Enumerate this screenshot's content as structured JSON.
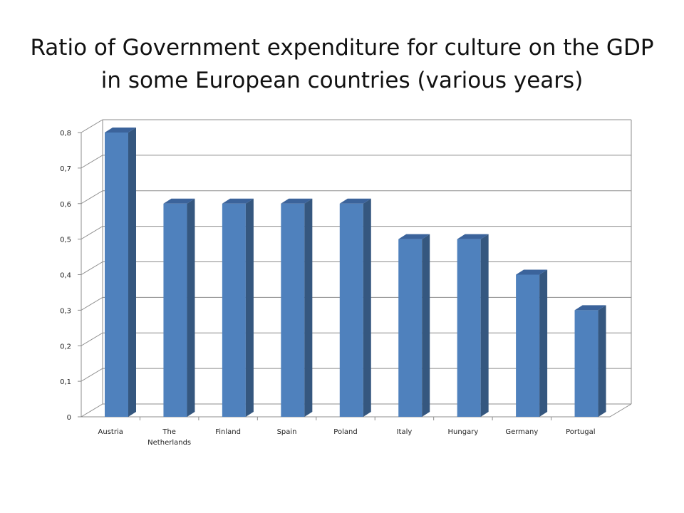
{
  "title": "Ratio of Government expenditure for culture on the GDP in some European countries (various years)",
  "chart_data": {
    "type": "bar",
    "title": "Ratio of Government expenditure for culture on the GDP in some European countries (various years)",
    "categories": [
      "Austria",
      "The Netherlands",
      "Finland",
      "Spain",
      "Poland",
      "Italy",
      "Hungary",
      "Germany",
      "Portugal"
    ],
    "category_lines": [
      [
        "Austria"
      ],
      [
        "The",
        "Netherlands"
      ],
      [
        "Finland"
      ],
      [
        "Spain"
      ],
      [
        "Poland"
      ],
      [
        "Italy"
      ],
      [
        "Hungary"
      ],
      [
        "Germany"
      ],
      [
        "Portugal"
      ]
    ],
    "values": [
      0.8,
      0.6,
      0.6,
      0.6,
      0.6,
      0.5,
      0.5,
      0.4,
      0.3
    ],
    "ylim": [
      0,
      0.8
    ],
    "yticks": [
      0,
      0.1,
      0.2,
      0.3,
      0.4,
      0.5,
      0.6,
      0.7,
      0.8
    ],
    "ytick_labels": [
      "0",
      "0,1",
      "0,2",
      "0,3",
      "0,4",
      "0,5",
      "0,6",
      "0,7",
      "0,8"
    ],
    "xlabel": "",
    "ylabel": "",
    "grid": true,
    "legend": false,
    "style": "3d-column",
    "colors": {
      "bar_front": "#4f81bd",
      "bar_side": "#35577f",
      "bar_top": "#3b639b",
      "grid": "#8c8c8c"
    }
  }
}
